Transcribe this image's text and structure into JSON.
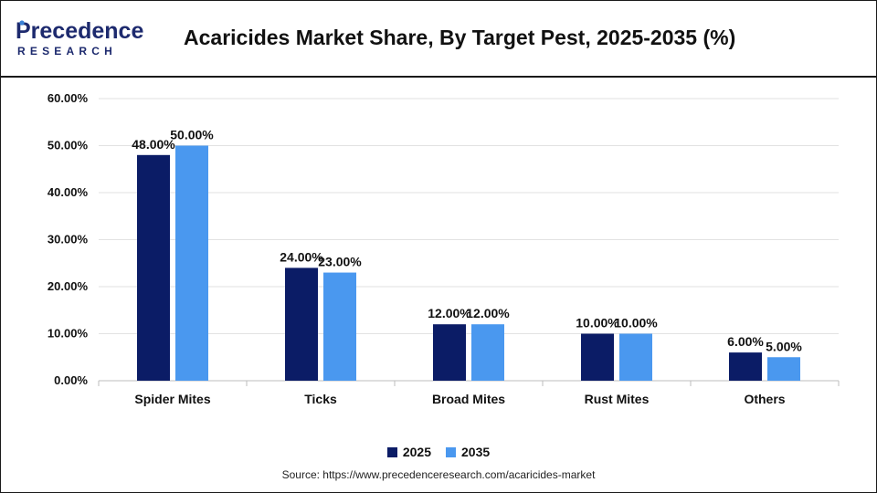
{
  "title": "Acaricides Market Share, By Target Pest, 2025-2035 (%)",
  "source": "Source: https://www.precedenceresearch.com/acaricides-market",
  "logo": {
    "line1": "Precedence",
    "line2": "RESEARCH"
  },
  "colors": {
    "series_2025": "#0b1c66",
    "series_2035": "#4a98ef",
    "logo_text": "#1d2a6e",
    "logo_accent": "#3b82d6"
  },
  "chart_data": {
    "type": "bar",
    "categories": [
      "Spider Mites",
      "Ticks",
      "Broad Mites",
      "Rust Mites",
      "Others"
    ],
    "series": [
      {
        "name": "2025",
        "values": [
          48.0,
          24.0,
          12.0,
          10.0,
          6.0
        ],
        "labels": [
          "48.00%",
          "24.00%",
          "12.00%",
          "10.00%",
          "6.00%"
        ]
      },
      {
        "name": "2035",
        "values": [
          50.0,
          23.0,
          12.0,
          10.0,
          5.0
        ],
        "labels": [
          "50.00%",
          "23.00%",
          "12.00%",
          "10.00%",
          "5.00%"
        ]
      }
    ],
    "ylim": [
      0,
      60
    ],
    "yticks": [
      "0.00%",
      "10.00%",
      "20.00%",
      "30.00%",
      "40.00%",
      "50.00%",
      "60.00%"
    ],
    "grid": true,
    "legend_position": "bottom-center"
  }
}
